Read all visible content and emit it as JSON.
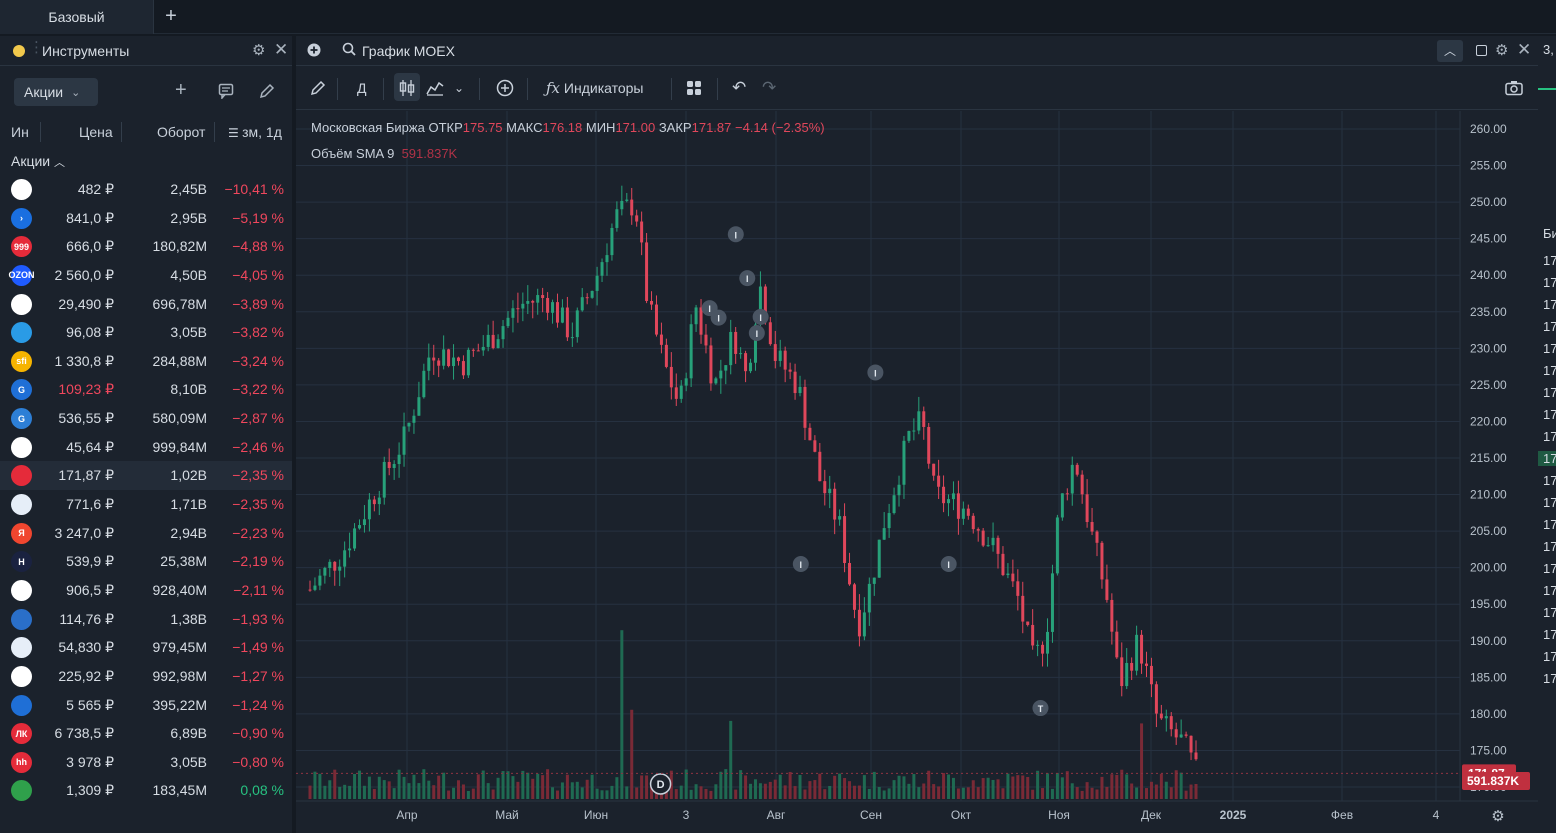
{
  "tabs": {
    "workspace": "Базовый",
    "add": "+"
  },
  "instruments": {
    "title": "Инструменты",
    "category_select": "Акции",
    "columns": {
      "ticker": "Ин",
      "price": "Цена",
      "turnover": "Оборот",
      "change": "зм, 1д"
    },
    "group": "Акции",
    "rows": [
      {
        "price": "482 ₽",
        "turnover": "2,45B",
        "change": "−10,41 %",
        "logo_color": "#ffffff",
        "logo_text": ""
      },
      {
        "price": "841,0 ₽",
        "turnover": "2,95B",
        "change": "−5,19 %",
        "logo_color": "#1a6fe0",
        "logo_text": "›"
      },
      {
        "price": "666,0 ₽",
        "turnover": "180,82M",
        "change": "−4,88 %",
        "logo_color": "#e52b3a",
        "logo_text": "999"
      },
      {
        "price": "2 560,0 ₽",
        "turnover": "4,50B",
        "change": "−4,05 %",
        "logo_color": "#1f5bff",
        "logo_text": "OZON"
      },
      {
        "price": "29,490 ₽",
        "turnover": "696,78M",
        "change": "−3,89 %",
        "logo_color": "#ffffff",
        "logo_text": ""
      },
      {
        "price": "96,08 ₽",
        "turnover": "3,05B",
        "change": "−3,82 %",
        "logo_color": "#2a9be6",
        "logo_text": ""
      },
      {
        "price": "1 330,8 ₽",
        "turnover": "284,88M",
        "change": "−3,24 %",
        "logo_color": "#f6b400",
        "logo_text": "sfi"
      },
      {
        "price": "109,23 ₽",
        "turnover": "8,10B",
        "change": "−3,22 %",
        "logo_color": "#1f6fd6",
        "logo_text": "G",
        "price_red": true
      },
      {
        "price": "536,55 ₽",
        "turnover": "580,09M",
        "change": "−2,87 %",
        "logo_color": "#2d7fd6",
        "logo_text": "G"
      },
      {
        "price": "45,64 ₽",
        "turnover": "999,84M",
        "change": "−2,46 %",
        "logo_color": "#ffffff",
        "logo_text": ""
      },
      {
        "price": "171,87 ₽",
        "turnover": "1,02B",
        "change": "−2,35 %",
        "logo_color": "#e52b3a",
        "logo_text": "",
        "selected": true
      },
      {
        "price": "771,6 ₽",
        "turnover": "1,71B",
        "change": "−2,35 %",
        "logo_color": "#e6eef8",
        "logo_text": ""
      },
      {
        "price": "3 247,0 ₽",
        "turnover": "2,94B",
        "change": "−2,23 %",
        "logo_color": "#f0462f",
        "logo_text": "Я"
      },
      {
        "price": "539,9 ₽",
        "turnover": "25,38M",
        "change": "−2,19 %",
        "logo_color": "#1a2240",
        "logo_text": "H"
      },
      {
        "price": "906,5 ₽",
        "turnover": "928,40M",
        "change": "−2,11 %",
        "logo_color": "#ffffff",
        "logo_text": ""
      },
      {
        "price": "114,76 ₽",
        "turnover": "1,38B",
        "change": "−1,93 %",
        "logo_color": "#2a6fc9",
        "logo_text": ""
      },
      {
        "price": "54,830 ₽",
        "turnover": "979,45M",
        "change": "−1,49 %",
        "logo_color": "#e6eef8",
        "logo_text": ""
      },
      {
        "price": "225,92 ₽",
        "turnover": "992,98M",
        "change": "−1,27 %",
        "logo_color": "#ffffff",
        "logo_text": ""
      },
      {
        "price": "5 565 ₽",
        "turnover": "395,22M",
        "change": "−1,24 %",
        "logo_color": "#1f6fd6",
        "logo_text": ""
      },
      {
        "price": "6 738,5 ₽",
        "turnover": "6,89B",
        "change": "−0,90 %",
        "logo_color": "#e52b3a",
        "logo_text": "ЛК"
      },
      {
        "price": "3 978 ₽",
        "turnover": "3,05B",
        "change": "−0,80 %",
        "logo_color": "#e52b3a",
        "logo_text": "hh"
      },
      {
        "price": "1,309 ₽",
        "turnover": "183,45M",
        "change": "0,08 %",
        "logo_color": "#2fa04b",
        "logo_text": "",
        "positive": true
      }
    ]
  },
  "chart": {
    "panel_title": "График",
    "ticker": "MOEX",
    "toolbar": {
      "interval": "Д",
      "indicators": "Индикаторы"
    },
    "legend": {
      "name": "Московская Биржа",
      "open_label": "ОТКР",
      "open": "175.75",
      "high_label": "МАКС",
      "high": "176.18",
      "low_label": "МИН",
      "low": "171.00",
      "close_label": "ЗАКР",
      "close": "171.87",
      "change": "−4.14 (−2.35%)",
      "volume_label": "Объём SMA 9",
      "volume": "591.837K"
    },
    "price_labels": {
      "last": "171.87",
      "volume": "591.837K"
    },
    "colors": {
      "up": "#27a17a",
      "down": "#e0475b",
      "bg": "#1b222c",
      "grid": "#263140"
    }
  },
  "chart_data": {
    "type": "candlestick",
    "y_ticks": [
      "260.00",
      "255.00",
      "250.00",
      "245.00",
      "240.00",
      "235.00",
      "230.00",
      "225.00",
      "220.00",
      "215.00",
      "210.00",
      "205.00",
      "200.00",
      "195.00",
      "190.00",
      "185.00",
      "180.00",
      "175.00",
      "170.00"
    ],
    "ylim": [
      170,
      260
    ],
    "x_ticks": [
      "Апр",
      "Май",
      "Июн",
      "3",
      "Авг",
      "Сен",
      "Окт",
      "Ноя",
      "Дек",
      "2025",
      "Фев",
      "4"
    ],
    "anchors": [
      {
        "t": 0,
        "p": 197
      },
      {
        "t": 0.05,
        "p": 202
      },
      {
        "t": 0.1,
        "p": 210
      },
      {
        "t": 0.15,
        "p": 218
      },
      {
        "t": 0.19,
        "p": 230
      },
      {
        "t": 0.24,
        "p": 228
      },
      {
        "t": 0.28,
        "p": 231
      },
      {
        "t": 0.33,
        "p": 236
      },
      {
        "t": 0.37,
        "p": 237
      },
      {
        "t": 0.41,
        "p": 232
      },
      {
        "t": 0.45,
        "p": 240
      },
      {
        "t": 0.48,
        "p": 248
      },
      {
        "t": 0.51,
        "p": 250
      },
      {
        "t": 0.53,
        "p": 236
      },
      {
        "t": 0.555,
        "p": 228
      },
      {
        "t": 0.58,
        "p": 222
      },
      {
        "t": 0.605,
        "p": 236
      },
      {
        "t": 0.635,
        "p": 225
      },
      {
        "t": 0.665,
        "p": 232
      },
      {
        "t": 0.685,
        "p": 226
      },
      {
        "t": 0.705,
        "p": 239
      },
      {
        "t": 0.73,
        "p": 229
      },
      {
        "t": 0.765,
        "p": 225
      },
      {
        "t": 0.8,
        "p": 212
      },
      {
        "t": 0.83,
        "p": 206
      },
      {
        "t": 0.86,
        "p": 192
      },
      {
        "t": 0.88,
        "p": 198
      },
      {
        "t": 0.9,
        "p": 206
      },
      {
        "t": 0.94,
        "p": 218
      },
      {
        "t": 0.96,
        "p": 220
      },
      {
        "t": 0.98,
        "p": 210
      },
      {
        "t": 1.03,
        "p": 208
      },
      {
        "t": 1.07,
        "p": 203
      },
      {
        "t": 1.11,
        "p": 196
      },
      {
        "t": 1.135,
        "p": 187
      },
      {
        "t": 1.155,
        "p": 191
      },
      {
        "t": 1.175,
        "p": 208
      },
      {
        "t": 1.2,
        "p": 215
      },
      {
        "t": 1.225,
        "p": 205
      },
      {
        "t": 1.25,
        "p": 196
      },
      {
        "t": 1.27,
        "p": 184
      },
      {
        "t": 1.3,
        "p": 190
      },
      {
        "t": 1.33,
        "p": 179
      },
      {
        "t": 1.37,
        "p": 176
      },
      {
        "t": 1.39,
        "p": 172
      }
    ],
    "markers": [
      {
        "label": "I",
        "date_frac": 0.668,
        "price": 245.6
      },
      {
        "label": "I",
        "date_frac": 0.686,
        "price": 239.6
      },
      {
        "label": "I",
        "date_frac": 0.627,
        "price": 235.5
      },
      {
        "label": "I",
        "date_frac": 0.641,
        "price": 234.2
      },
      {
        "label": "I",
        "date_frac": 0.707,
        "price": 234.3
      },
      {
        "label": "I",
        "date_frac": 0.701,
        "price": 232.1
      },
      {
        "label": "I",
        "date_frac": 0.887,
        "price": 226.7
      },
      {
        "label": "I",
        "date_frac": 0.77,
        "price": 200.5
      },
      {
        "label": "I",
        "date_frac": 1.002,
        "price": 200.5
      },
      {
        "label": "T",
        "date_frac": 1.146,
        "price": 180.8
      },
      {
        "label": "D",
        "date_frac": 0.55,
        "price": 172.5
      }
    ]
  },
  "right_stub": {
    "top": "3,",
    "header": "Би",
    "values": [
      "17",
      "17",
      "17",
      "17",
      "17",
      "17",
      "17",
      "17",
      "17",
      "17",
      "17",
      "17",
      "17",
      "17",
      "17",
      "17",
      "17",
      "17",
      "17",
      "17"
    ]
  }
}
